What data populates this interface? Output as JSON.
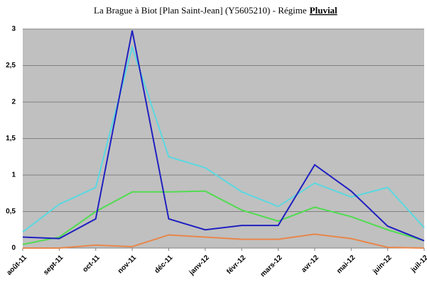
{
  "chart_data": {
    "type": "line",
    "title": "La Brague à Biot [Plan Saint-Jean] (Y5605210) - Régime",
    "title_emphasis": "Pluvial",
    "categories": [
      "août-11",
      "sept-11",
      "oct-11",
      "nov-11",
      "déc-11",
      "janv-12",
      "févr-12",
      "mars-12",
      "avr-12",
      "mai-12",
      "juin-12",
      "juil-12"
    ],
    "series": [
      {
        "color": "#5ad8e0",
        "values": [
          0.22,
          0.6,
          0.83,
          2.75,
          1.25,
          1.1,
          0.77,
          0.57,
          0.89,
          0.7,
          0.83,
          0.28
        ]
      },
      {
        "color": "#50dc50",
        "values": [
          0.05,
          0.15,
          0.5,
          0.77,
          0.77,
          0.78,
          0.52,
          0.37,
          0.56,
          0.43,
          0.25,
          0.1
        ]
      },
      {
        "color": "#e8864a",
        "values": [
          0,
          0,
          0.04,
          0.02,
          0.18,
          0.15,
          0.12,
          0.12,
          0.19,
          0.13,
          0.01,
          0
        ]
      },
      {
        "color": "#2020c0",
        "values": [
          0.15,
          0.13,
          0.4,
          2.98,
          0.4,
          0.25,
          0.31,
          0.31,
          1.14,
          0.78,
          0.3,
          0.1
        ]
      }
    ],
    "ylim": [
      0,
      3
    ],
    "yticks": [
      0,
      {
        "value": 0.5,
        "label": "0,5"
      },
      1,
      {
        "value": 1.5,
        "label": "1,5"
      },
      2,
      {
        "value": 2.5,
        "label": "2,5"
      },
      3
    ],
    "grid": true
  }
}
